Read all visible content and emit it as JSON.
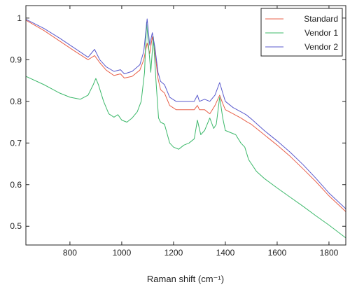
{
  "chart_data": {
    "type": "line",
    "title": "",
    "xlabel": "Raman shift (cm⁻¹)",
    "ylabel": "",
    "xlim": [
      630,
      1865
    ],
    "ylim": [
      0.455,
      1.03
    ],
    "xticks": [
      800,
      1000,
      1200,
      1400,
      1600,
      1800
    ],
    "xtick_labels": [
      "800",
      "1000",
      "1200",
      "1400",
      "1600",
      "1800"
    ],
    "yticks": [
      0.5,
      0.6,
      0.7,
      0.8,
      0.9,
      1.0
    ],
    "ytick_labels": [
      "0.5",
      "0.6",
      "0.7",
      "0.8",
      "0.9",
      "1"
    ],
    "grid": false,
    "legend_position": "top-right",
    "series": [
      {
        "name": "Standard",
        "color": "#e8604a",
        "points": [
          [
            630,
            0.995
          ],
          [
            700,
            0.97
          ],
          [
            760,
            0.945
          ],
          [
            820,
            0.92
          ],
          [
            870,
            0.9
          ],
          [
            895,
            0.91
          ],
          [
            915,
            0.893
          ],
          [
            940,
            0.875
          ],
          [
            970,
            0.862
          ],
          [
            995,
            0.866
          ],
          [
            1010,
            0.856
          ],
          [
            1040,
            0.86
          ],
          [
            1070,
            0.875
          ],
          [
            1085,
            0.9
          ],
          [
            1098,
            0.94
          ],
          [
            1108,
            0.915
          ],
          [
            1118,
            0.955
          ],
          [
            1128,
            0.92
          ],
          [
            1140,
            0.855
          ],
          [
            1150,
            0.828
          ],
          [
            1165,
            0.82
          ],
          [
            1185,
            0.79
          ],
          [
            1210,
            0.78
          ],
          [
            1250,
            0.78
          ],
          [
            1280,
            0.78
          ],
          [
            1292,
            0.79
          ],
          [
            1300,
            0.78
          ],
          [
            1320,
            0.78
          ],
          [
            1340,
            0.77
          ],
          [
            1360,
            0.79
          ],
          [
            1378,
            0.815
          ],
          [
            1390,
            0.795
          ],
          [
            1400,
            0.78
          ],
          [
            1430,
            0.77
          ],
          [
            1460,
            0.76
          ],
          [
            1480,
            0.752
          ],
          [
            1500,
            0.745
          ],
          [
            1550,
            0.72
          ],
          [
            1600,
            0.695
          ],
          [
            1650,
            0.668
          ],
          [
            1700,
            0.638
          ],
          [
            1750,
            0.607
          ],
          [
            1800,
            0.573
          ],
          [
            1865,
            0.535
          ]
        ]
      },
      {
        "name": "Vendor 1",
        "color": "#3cb86a",
        "points": [
          [
            630,
            0.86
          ],
          [
            700,
            0.84
          ],
          [
            760,
            0.82
          ],
          [
            800,
            0.81
          ],
          [
            840,
            0.805
          ],
          [
            870,
            0.815
          ],
          [
            890,
            0.84
          ],
          [
            900,
            0.855
          ],
          [
            910,
            0.84
          ],
          [
            930,
            0.8
          ],
          [
            950,
            0.77
          ],
          [
            970,
            0.762
          ],
          [
            985,
            0.768
          ],
          [
            1000,
            0.755
          ],
          [
            1020,
            0.75
          ],
          [
            1040,
            0.76
          ],
          [
            1060,
            0.775
          ],
          [
            1075,
            0.8
          ],
          [
            1088,
            0.87
          ],
          [
            1096,
            0.99
          ],
          [
            1104,
            0.93
          ],
          [
            1112,
            0.87
          ],
          [
            1122,
            0.955
          ],
          [
            1132,
            0.85
          ],
          [
            1142,
            0.76
          ],
          [
            1150,
            0.75
          ],
          [
            1165,
            0.745
          ],
          [
            1185,
            0.7
          ],
          [
            1200,
            0.69
          ],
          [
            1220,
            0.685
          ],
          [
            1240,
            0.695
          ],
          [
            1260,
            0.7
          ],
          [
            1280,
            0.71
          ],
          [
            1292,
            0.755
          ],
          [
            1305,
            0.72
          ],
          [
            1320,
            0.73
          ],
          [
            1340,
            0.76
          ],
          [
            1355,
            0.735
          ],
          [
            1365,
            0.745
          ],
          [
            1378,
            0.81
          ],
          [
            1390,
            0.76
          ],
          [
            1400,
            0.73
          ],
          [
            1420,
            0.725
          ],
          [
            1440,
            0.72
          ],
          [
            1460,
            0.7
          ],
          [
            1475,
            0.69
          ],
          [
            1490,
            0.66
          ],
          [
            1520,
            0.632
          ],
          [
            1550,
            0.615
          ],
          [
            1600,
            0.592
          ],
          [
            1650,
            0.57
          ],
          [
            1700,
            0.548
          ],
          [
            1750,
            0.525
          ],
          [
            1800,
            0.503
          ],
          [
            1865,
            0.472
          ]
        ]
      },
      {
        "name": "Vendor 2",
        "color": "#5a5acd",
        "points": [
          [
            630,
            0.997
          ],
          [
            700,
            0.975
          ],
          [
            760,
            0.952
          ],
          [
            820,
            0.927
          ],
          [
            870,
            0.906
          ],
          [
            895,
            0.925
          ],
          [
            915,
            0.9
          ],
          [
            940,
            0.883
          ],
          [
            970,
            0.872
          ],
          [
            995,
            0.876
          ],
          [
            1010,
            0.866
          ],
          [
            1040,
            0.872
          ],
          [
            1070,
            0.888
          ],
          [
            1085,
            0.92
          ],
          [
            1098,
            0.998
          ],
          [
            1108,
            0.935
          ],
          [
            1118,
            0.965
          ],
          [
            1128,
            0.93
          ],
          [
            1140,
            0.87
          ],
          [
            1150,
            0.848
          ],
          [
            1165,
            0.84
          ],
          [
            1185,
            0.81
          ],
          [
            1210,
            0.8
          ],
          [
            1250,
            0.8
          ],
          [
            1280,
            0.8
          ],
          [
            1292,
            0.815
          ],
          [
            1300,
            0.8
          ],
          [
            1320,
            0.805
          ],
          [
            1340,
            0.8
          ],
          [
            1360,
            0.815
          ],
          [
            1378,
            0.845
          ],
          [
            1390,
            0.82
          ],
          [
            1400,
            0.8
          ],
          [
            1430,
            0.785
          ],
          [
            1460,
            0.775
          ],
          [
            1480,
            0.768
          ],
          [
            1500,
            0.758
          ],
          [
            1550,
            0.73
          ],
          [
            1600,
            0.705
          ],
          [
            1650,
            0.678
          ],
          [
            1700,
            0.648
          ],
          [
            1750,
            0.615
          ],
          [
            1800,
            0.58
          ],
          [
            1865,
            0.542
          ]
        ]
      }
    ]
  }
}
